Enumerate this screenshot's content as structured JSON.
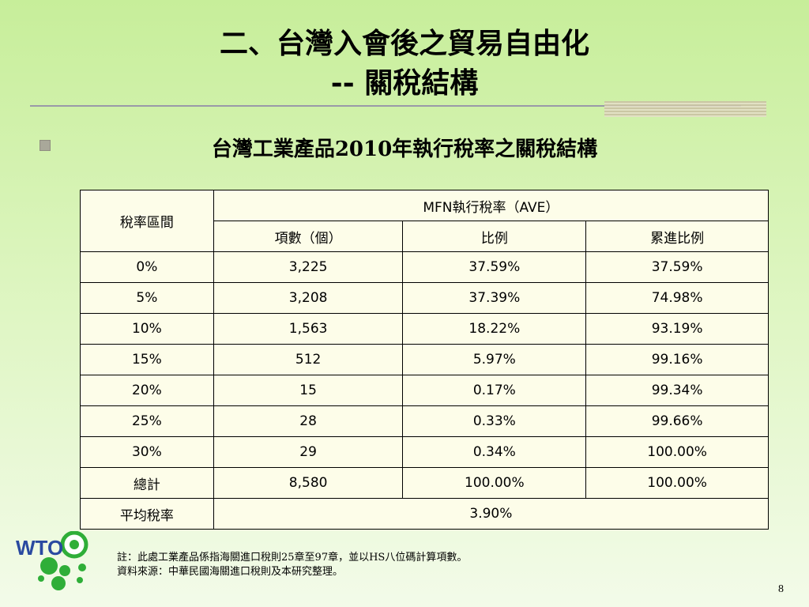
{
  "slide": {
    "title_line1": "二、台灣入會後之貿易自由化",
    "title_line2": "-- 關稅結構",
    "subtitle": "台灣工業產品2010年執行稅率之關稅結構",
    "page_number": "8"
  },
  "table": {
    "header": {
      "band": "稅率區間",
      "group": "MFN執行稅率（AVE）",
      "count": "項數（個）",
      "share": "比例",
      "cumulative": "累進比例"
    },
    "rows": [
      {
        "band": "0%",
        "count": "3,225",
        "share": "37.59%",
        "cumulative": "37.59%"
      },
      {
        "band": "5%",
        "count": "3,208",
        "share": "37.39%",
        "cumulative": "74.98%"
      },
      {
        "band": "10%",
        "count": "1,563",
        "share": "18.22%",
        "cumulative": "93.19%"
      },
      {
        "band": "15%",
        "count": "512",
        "share": "5.97%",
        "cumulative": "99.16%"
      },
      {
        "band": "20%",
        "count": "15",
        "share": "0.17%",
        "cumulative": "99.34%"
      },
      {
        "band": "25%",
        "count": "28",
        "share": "0.33%",
        "cumulative": "99.66%"
      },
      {
        "band": "30%",
        "count": "29",
        "share": "0.34%",
        "cumulative": "100.00%"
      },
      {
        "band": "總計",
        "count": "8,580",
        "share": "100.00%",
        "cumulative": "100.00%"
      }
    ],
    "average": {
      "label": "平均稅率",
      "value": "3.90%"
    }
  },
  "notes": {
    "line1": "註：此處工業產品係指海關進口稅則25章至97章，並以HS八位碼計算項數。",
    "line2": "資料來源：中華民國海關進口稅則及本研究整理。"
  },
  "logo": {
    "text": "WTO",
    "icon": "wto-logo-icon",
    "colors": {
      "blue": "#2a4aa0",
      "green": "#2fae38"
    }
  },
  "colors": {
    "background_top": "#c7ee9a",
    "table_fill": "#fdfde9",
    "bullet": "#a9a89a"
  }
}
